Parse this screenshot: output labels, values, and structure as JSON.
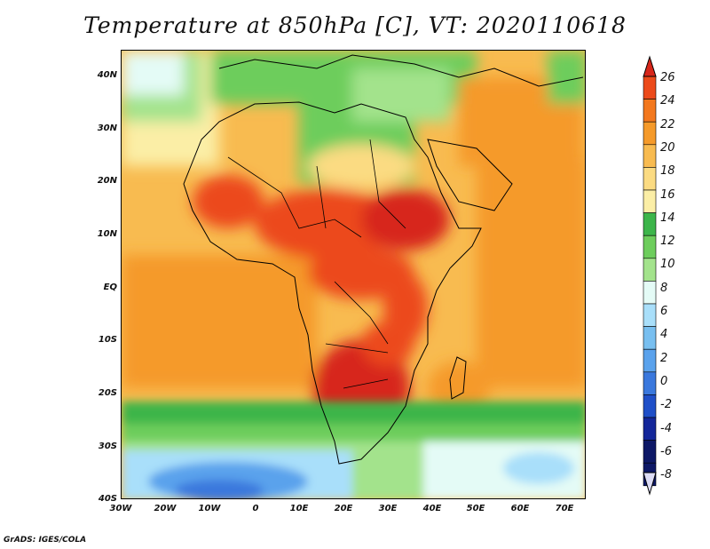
{
  "title": "Temperature at 850hPa [C], VT: 2020110618",
  "credit": "GrADS: IGES/COLA",
  "lat_labels": [
    "40N",
    "30N",
    "20N",
    "10N",
    "EQ",
    "10S",
    "20S",
    "30S",
    "40S"
  ],
  "lon_labels": [
    "30W",
    "20W",
    "10W",
    "0",
    "10E",
    "20E",
    "30E",
    "40E",
    "50E",
    "60E",
    "70E"
  ],
  "colorbar": {
    "labels": [
      "26",
      "24",
      "22",
      "20",
      "18",
      "16",
      "14",
      "12",
      "10",
      "8",
      "6",
      "4",
      "2",
      "0",
      "-2",
      "-4",
      "-6",
      "-8"
    ],
    "colors": [
      "#d7261a",
      "#ec4a1a",
      "#f3781e",
      "#f59a2a",
      "#f8bb50",
      "#fbdb82",
      "#fbeea6",
      "#3cb54a",
      "#6dcd5c",
      "#a3e38c",
      "#e4fbf6",
      "#a9dffa",
      "#78bff0",
      "#5aa2ec",
      "#3a78dd",
      "#1f4fc8",
      "#14279a",
      "#0d1866"
    ]
  }
}
